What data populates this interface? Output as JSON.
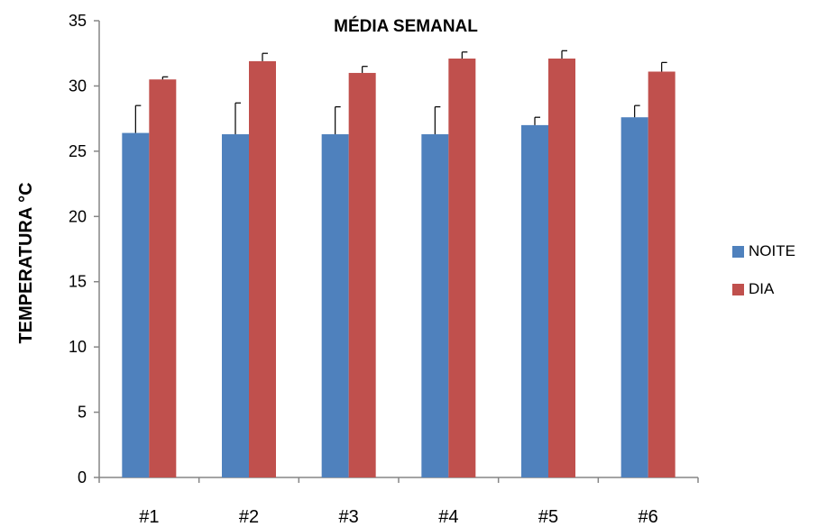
{
  "chart_data": {
    "type": "bar",
    "title": "MÉDIA SEMANAL",
    "ylabel": "TEMPERATURA  °C",
    "xlabel": "",
    "categories": [
      "#1",
      "#2",
      "#3",
      "#4",
      "#5",
      "#6"
    ],
    "ylim": [
      0,
      35
    ],
    "yticks": [
      "0",
      "5",
      "10",
      "15",
      "20",
      "25",
      "30",
      "35"
    ],
    "grid": false,
    "legend_position": "right",
    "series": [
      {
        "name": "NOITE",
        "color": "#4F81BD",
        "values": [
          26.4,
          26.3,
          26.3,
          26.3,
          27.0,
          27.6
        ],
        "error": [
          2.1,
          2.4,
          2.1,
          2.1,
          0.6,
          0.9
        ]
      },
      {
        "name": "DIA",
        "color": "#C0504D",
        "values": [
          30.5,
          31.9,
          31.0,
          32.1,
          32.1,
          31.1
        ],
        "error": [
          0.2,
          0.6,
          0.5,
          0.5,
          0.6,
          0.7
        ]
      }
    ]
  }
}
